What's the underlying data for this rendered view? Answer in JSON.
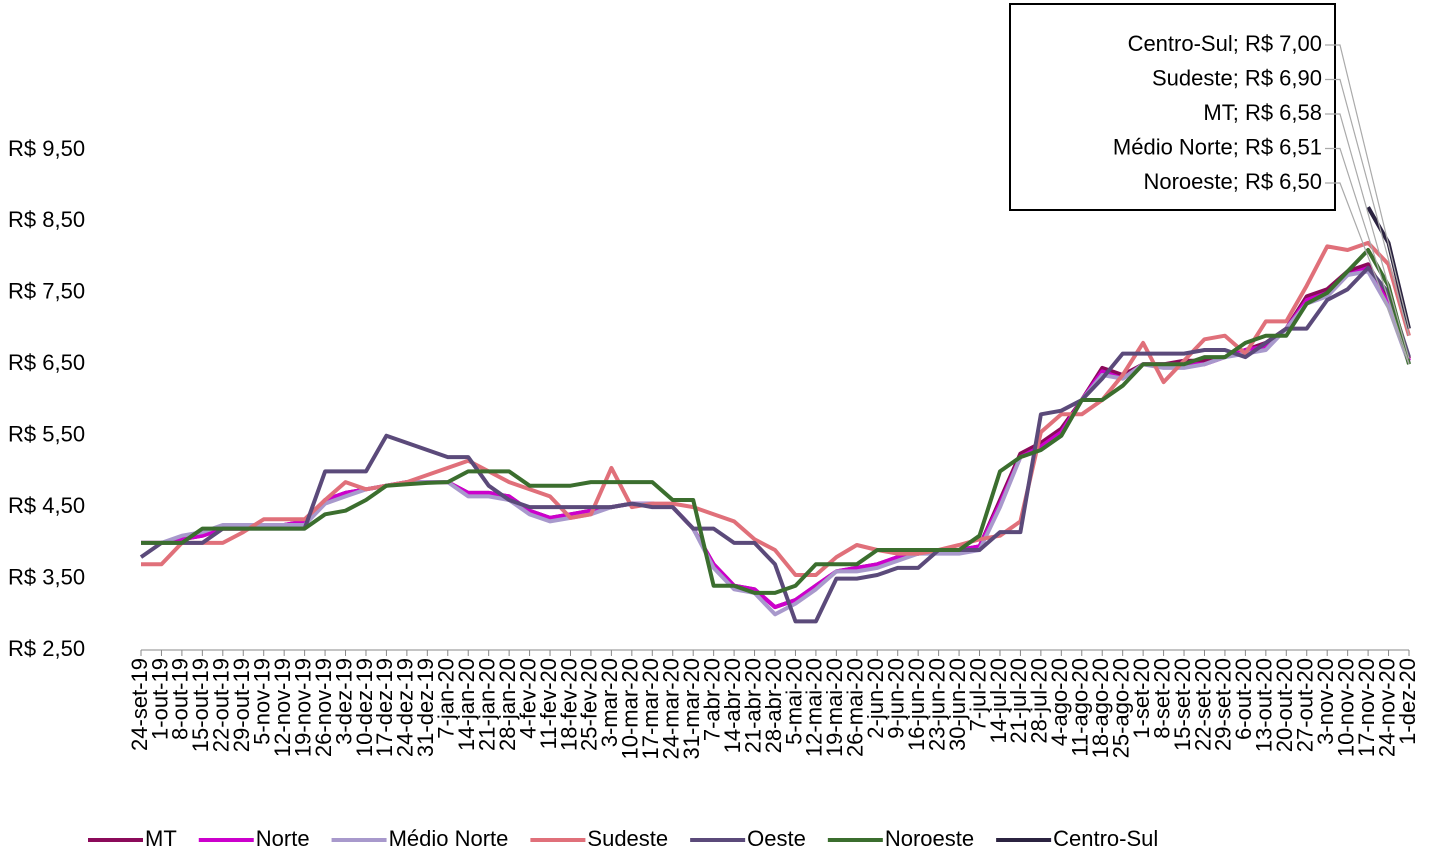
{
  "chart_data": {
    "type": "line",
    "categories": [
      "24-set-19",
      "1-out-19",
      "8-out-19",
      "15-out-19",
      "22-out-19",
      "29-out-19",
      "5-nov-19",
      "12-nov-19",
      "19-nov-19",
      "26-nov-19",
      "3-dez-19",
      "10-dez-19",
      "17-dez-19",
      "24-dez-19",
      "31-dez-19",
      "7-jan-20",
      "14-jan-20",
      "21-jan-20",
      "28-jan-20",
      "4-fev-20",
      "11-fev-20",
      "18-fev-20",
      "25-fev-20",
      "3-mar-20",
      "10-mar-20",
      "17-mar-20",
      "24-mar-20",
      "31-mar-20",
      "7-abr-20",
      "14-abr-20",
      "21-abr-20",
      "28-abr-20",
      "5-mai-20",
      "12-mai-20",
      "19-mai-20",
      "26-mai-20",
      "2-jun-20",
      "9-jun-20",
      "16-jun-20",
      "23-jun-20",
      "30-jun-20",
      "7-jul-20",
      "14-jul-20",
      "21-jul-20",
      "28-jul-20",
      "4-ago-20",
      "11-ago-20",
      "18-ago-20",
      "25-ago-20",
      "1-set-20",
      "8-set-20",
      "15-set-20",
      "22-set-20",
      "29-set-20",
      "6-out-20",
      "13-out-20",
      "20-out-20",
      "27-out-20",
      "3-nov-20",
      "10-nov-20",
      "17-nov-20",
      "24-nov-20",
      "1-dez-20"
    ],
    "series": [
      {
        "name": "MT",
        "color": "#8b0a5a",
        "values": [
          4.0,
          4.0,
          4.05,
          4.1,
          4.2,
          4.2,
          4.25,
          4.25,
          4.3,
          4.6,
          4.7,
          4.75,
          4.8,
          4.85,
          4.85,
          4.85,
          4.7,
          4.7,
          4.65,
          4.45,
          4.35,
          4.4,
          4.45,
          4.5,
          4.55,
          4.55,
          4.5,
          4.2,
          3.7,
          3.4,
          3.35,
          3.1,
          3.2,
          3.4,
          3.6,
          3.65,
          3.7,
          3.8,
          3.85,
          3.9,
          3.9,
          3.95,
          4.6,
          5.25,
          5.4,
          5.6,
          6.0,
          6.45,
          6.35,
          6.5,
          6.5,
          6.55,
          6.55,
          6.6,
          6.7,
          6.8,
          7.0,
          7.45,
          7.55,
          7.8,
          7.9,
          7.4,
          6.58
        ]
      },
      {
        "name": "Norte",
        "color": "#cc00cc",
        "values": [
          4.0,
          4.0,
          4.05,
          4.1,
          4.2,
          4.2,
          4.25,
          4.25,
          4.3,
          4.6,
          4.7,
          4.75,
          4.8,
          4.85,
          4.85,
          4.85,
          4.7,
          4.7,
          4.65,
          4.45,
          4.35,
          4.4,
          4.45,
          4.5,
          4.55,
          4.55,
          4.5,
          4.2,
          3.7,
          3.4,
          3.35,
          3.1,
          3.2,
          3.4,
          3.6,
          3.65,
          3.7,
          3.8,
          3.85,
          3.9,
          3.9,
          3.95,
          4.55,
          5.2,
          5.35,
          5.55,
          6.0,
          6.4,
          6.3,
          6.5,
          6.5,
          6.5,
          6.5,
          6.6,
          6.7,
          6.75,
          7.0,
          7.4,
          7.5,
          7.75,
          7.85,
          7.35,
          6.55
        ]
      },
      {
        "name": "Médio Norte",
        "color": "#a899cc",
        "values": [
          4.0,
          4.0,
          4.1,
          4.15,
          4.25,
          4.25,
          4.25,
          4.25,
          4.25,
          4.55,
          4.65,
          4.75,
          4.8,
          4.85,
          4.85,
          4.85,
          4.65,
          4.65,
          4.6,
          4.4,
          4.3,
          4.35,
          4.4,
          4.5,
          4.55,
          4.55,
          4.5,
          4.2,
          3.65,
          3.35,
          3.3,
          3.0,
          3.15,
          3.35,
          3.6,
          3.6,
          3.65,
          3.75,
          3.85,
          3.85,
          3.85,
          3.9,
          4.5,
          5.2,
          5.3,
          5.5,
          6.0,
          6.35,
          6.3,
          6.5,
          6.45,
          6.45,
          6.5,
          6.6,
          6.65,
          6.7,
          7.0,
          7.35,
          7.45,
          7.75,
          7.8,
          7.3,
          6.51
        ]
      },
      {
        "name": "Sudeste",
        "color": "#e0707a",
        "values": [
          3.7,
          3.7,
          4.0,
          4.0,
          4.0,
          4.15,
          4.33,
          4.33,
          4.33,
          4.6,
          4.85,
          4.75,
          4.8,
          4.85,
          4.95,
          5.05,
          5.15,
          5.0,
          4.85,
          4.75,
          4.65,
          4.35,
          4.4,
          5.05,
          4.5,
          4.55,
          4.55,
          4.5,
          4.4,
          4.3,
          4.05,
          3.9,
          3.55,
          3.55,
          3.8,
          3.97,
          3.9,
          3.85,
          3.85,
          3.9,
          3.97,
          4.05,
          4.1,
          4.3,
          5.55,
          5.8,
          5.8,
          6.0,
          6.35,
          6.8,
          6.25,
          6.55,
          6.85,
          6.9,
          6.65,
          7.1,
          7.1,
          7.6,
          8.15,
          8.1,
          8.2,
          7.9,
          6.9
        ]
      },
      {
        "name": "Oeste",
        "color": "#5b4a7a",
        "values": [
          3.8,
          4.0,
          4.0,
          4.0,
          4.2,
          4.2,
          4.2,
          4.2,
          4.2,
          5.0,
          5.0,
          5.0,
          5.5,
          5.4,
          5.3,
          5.2,
          5.2,
          4.8,
          4.6,
          4.5,
          4.5,
          4.5,
          4.5,
          4.5,
          4.55,
          4.5,
          4.5,
          4.2,
          4.2,
          4.0,
          4.0,
          3.7,
          2.9,
          2.9,
          3.5,
          3.5,
          3.55,
          3.65,
          3.65,
          3.9,
          3.9,
          3.9,
          4.15,
          4.15,
          5.8,
          5.85,
          6.0,
          6.3,
          6.65,
          6.65,
          6.65,
          6.65,
          6.7,
          6.7,
          6.6,
          6.8,
          7.0,
          7.0,
          7.4,
          7.55,
          7.85,
          7.5,
          6.6
        ]
      },
      {
        "name": "Noroeste",
        "color": "#3b6e2e",
        "values": [
          4.0,
          4.0,
          4.0,
          4.2,
          4.2,
          4.2,
          4.2,
          4.2,
          4.2,
          4.4,
          4.45,
          4.6,
          4.8,
          4.82,
          4.84,
          4.85,
          5.0,
          5.0,
          5.0,
          4.8,
          4.8,
          4.8,
          4.85,
          4.85,
          4.85,
          4.85,
          4.6,
          4.6,
          3.4,
          3.4,
          3.3,
          3.3,
          3.4,
          3.7,
          3.7,
          3.7,
          3.9,
          3.9,
          3.9,
          3.9,
          3.9,
          4.1,
          5.0,
          5.2,
          5.3,
          5.5,
          6.0,
          6.0,
          6.2,
          6.5,
          6.5,
          6.5,
          6.6,
          6.6,
          6.8,
          6.9,
          6.9,
          7.35,
          7.5,
          7.8,
          8.1,
          7.6,
          6.5
        ]
      },
      {
        "name": "Centro-Sul",
        "color": "#2b2340",
        "values": [
          null,
          null,
          null,
          null,
          null,
          null,
          null,
          null,
          null,
          null,
          null,
          null,
          null,
          null,
          null,
          null,
          null,
          null,
          null,
          null,
          null,
          null,
          null,
          null,
          null,
          null,
          null,
          null,
          null,
          null,
          null,
          null,
          null,
          null,
          null,
          null,
          null,
          null,
          null,
          null,
          null,
          null,
          null,
          null,
          null,
          null,
          null,
          null,
          null,
          null,
          null,
          null,
          null,
          null,
          null,
          null,
          null,
          null,
          null,
          null,
          8.7,
          8.2,
          7.0
        ]
      }
    ],
    "ylim": [
      2.5,
      9.5
    ],
    "yticks": [
      {
        "value": 2.5,
        "label": "R$ 2,50"
      },
      {
        "value": 3.5,
        "label": "R$ 3,50"
      },
      {
        "value": 4.5,
        "label": "R$ 4,50"
      },
      {
        "value": 5.5,
        "label": "R$ 5,50"
      },
      {
        "value": 6.5,
        "label": "R$ 6,50"
      },
      {
        "value": 7.5,
        "label": "R$ 7,50"
      },
      {
        "value": 8.5,
        "label": "R$ 8,50"
      },
      {
        "value": 9.5,
        "label": "R$ 9,50"
      }
    ],
    "grid": false,
    "legend": "bottom",
    "annotations": [
      "Centro-Sul; R$ 7,00",
      "Sudeste; R$ 6,90",
      "MT; R$ 6,58",
      "Médio Norte; R$ 6,51",
      "Noroeste; R$ 6,50"
    ]
  }
}
